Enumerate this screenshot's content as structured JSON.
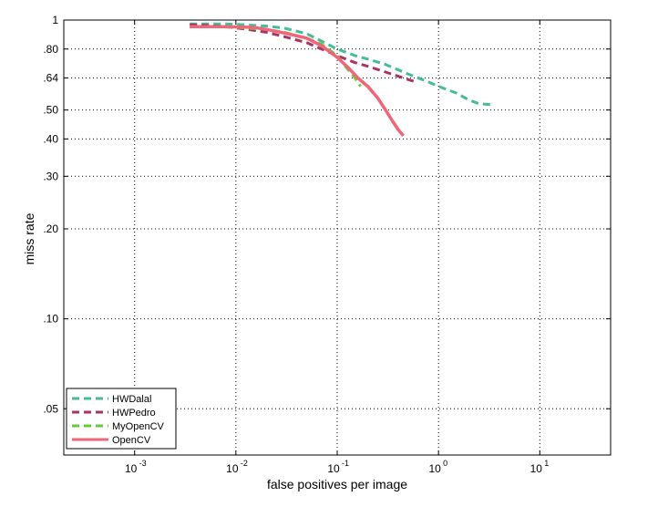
{
  "chart_data": {
    "type": "line",
    "title": "",
    "xlabel": "false positives per image",
    "ylabel": "miss rate",
    "xscale": "log",
    "yscale": "log",
    "xlim": [
      0.0002,
      50
    ],
    "ylim": [
      0.035,
      1
    ],
    "grid": true,
    "legend_position": "bottom-left",
    "x_ticks": [
      {
        "value": 0.001,
        "base": "10",
        "exp": "-3"
      },
      {
        "value": 0.01,
        "base": "10",
        "exp": "-2"
      },
      {
        "value": 0.1,
        "base": "10",
        "exp": "-1"
      },
      {
        "value": 1,
        "base": "10",
        "exp": "0"
      },
      {
        "value": 10,
        "base": "10",
        "exp": "1"
      }
    ],
    "y_ticks": [
      {
        "value": 1,
        "label": "1"
      },
      {
        "value": 0.8,
        "label": ".80"
      },
      {
        "value": 0.64,
        "label": ".64"
      },
      {
        "value": 0.5,
        "label": ".50"
      },
      {
        "value": 0.4,
        "label": ".40"
      },
      {
        "value": 0.3,
        "label": ".30"
      },
      {
        "value": 0.2,
        "label": ".20"
      },
      {
        "value": 0.1,
        "label": ".10"
      },
      {
        "value": 0.05,
        "label": ".05"
      }
    ],
    "series": [
      {
        "name": "HWDalal",
        "color": "#44bb99",
        "dash": "dashed",
        "x": [
          0.0035,
          0.005,
          0.008,
          0.012,
          0.02,
          0.03,
          0.05,
          0.07,
          0.1,
          0.15,
          0.2,
          0.3,
          0.5,
          0.8,
          1.0,
          1.5,
          2.0,
          2.5,
          3.5
        ],
        "y": [
          0.97,
          0.97,
          0.97,
          0.965,
          0.955,
          0.94,
          0.9,
          0.85,
          0.8,
          0.76,
          0.74,
          0.71,
          0.66,
          0.62,
          0.6,
          0.57,
          0.54,
          0.525,
          0.52
        ]
      },
      {
        "name": "HWPedro",
        "color": "#aa3366",
        "dash": "dashed",
        "x": [
          0.0035,
          0.005,
          0.008,
          0.012,
          0.02,
          0.03,
          0.05,
          0.07,
          0.1,
          0.15,
          0.2,
          0.3,
          0.45,
          0.6
        ],
        "y": [
          0.965,
          0.96,
          0.95,
          0.935,
          0.91,
          0.88,
          0.84,
          0.8,
          0.76,
          0.72,
          0.7,
          0.67,
          0.64,
          0.62
        ]
      },
      {
        "name": "MyOpenCV",
        "color": "#66cc33",
        "dash": "dashed",
        "x": [
          0.0035,
          0.006,
          0.01,
          0.02,
          0.03,
          0.05,
          0.07,
          0.1,
          0.12,
          0.15,
          0.17
        ],
        "y": [
          0.95,
          0.95,
          0.945,
          0.93,
          0.91,
          0.87,
          0.83,
          0.76,
          0.7,
          0.64,
          0.6
        ]
      },
      {
        "name": "OpenCV",
        "color": "#ee6677",
        "dash": "solid",
        "x": [
          0.0035,
          0.008,
          0.015,
          0.02,
          0.03,
          0.05,
          0.07,
          0.1,
          0.13,
          0.16,
          0.2,
          0.25,
          0.3,
          0.35,
          0.4,
          0.45
        ],
        "y": [
          0.95,
          0.95,
          0.945,
          0.93,
          0.905,
          0.87,
          0.82,
          0.75,
          0.69,
          0.64,
          0.6,
          0.55,
          0.5,
          0.46,
          0.43,
          0.41
        ]
      }
    ]
  }
}
